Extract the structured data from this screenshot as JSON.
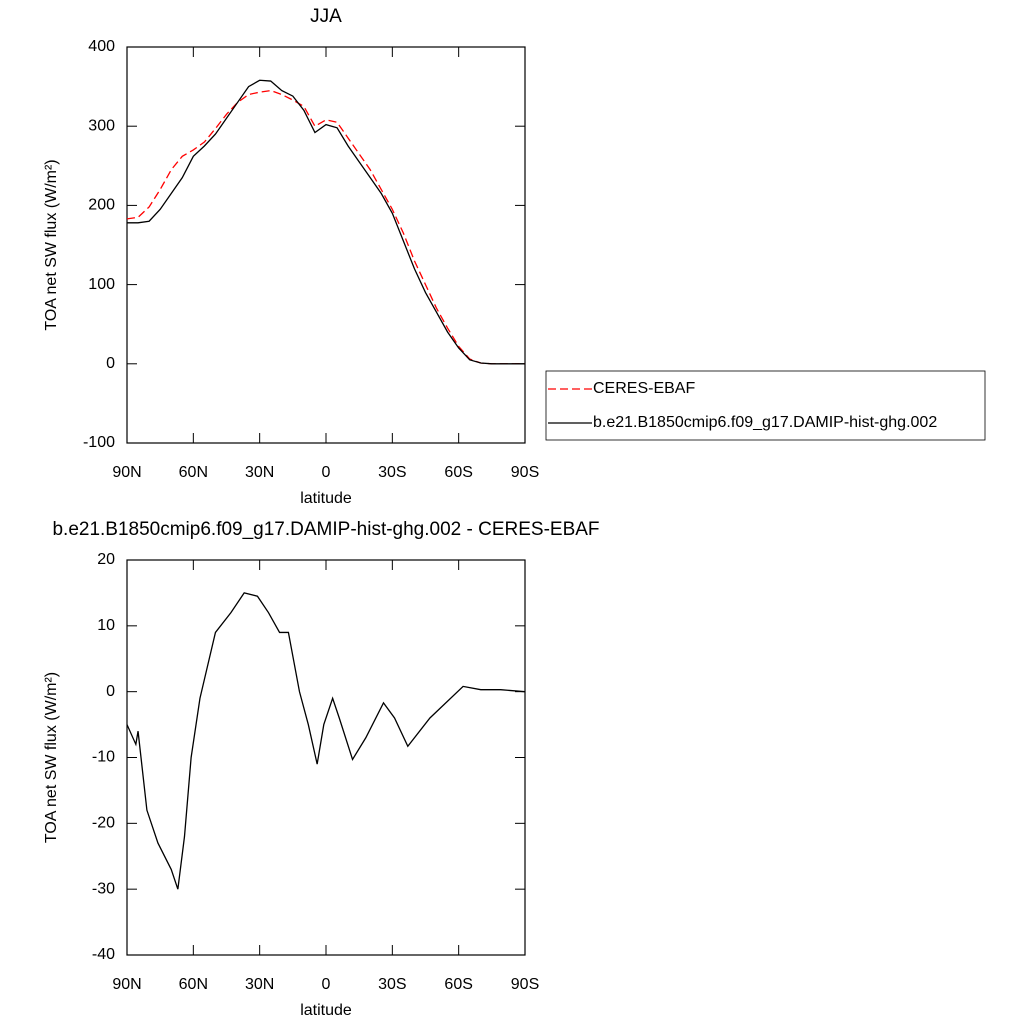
{
  "chart_data": [
    {
      "type": "line",
      "title": "JJA",
      "xlabel": "latitude",
      "ylabel": "TOA net SW flux (W/m²)",
      "x": [
        90,
        85,
        80,
        75,
        70,
        65,
        60,
        55,
        50,
        45,
        40,
        35,
        30,
        25,
        20,
        15,
        10,
        5,
        0,
        -5,
        -10,
        -15,
        -20,
        -25,
        -30,
        -35,
        -40,
        -45,
        -50,
        -55,
        -60,
        -65,
        -70,
        -75,
        -80,
        -85,
        -90
      ],
      "xlim": [
        90,
        -90
      ],
      "xticks": [
        {
          "value": 90,
          "label": "90N"
        },
        {
          "value": 60,
          "label": "60N"
        },
        {
          "value": 30,
          "label": "30N"
        },
        0,
        {
          "value": -30,
          "label": "30S"
        },
        {
          "value": -60,
          "label": "60S"
        },
        {
          "value": -90,
          "label": "90S"
        }
      ],
      "ylim": [
        -100,
        400
      ],
      "yticks": [
        -100,
        0,
        100,
        200,
        300,
        400
      ],
      "legend": "right",
      "series": [
        {
          "name": "CERES-EBAF",
          "color": "#ff0000",
          "dashed": true,
          "values": [
            183,
            185,
            198,
            220,
            245,
            262,
            270,
            280,
            297,
            315,
            330,
            340,
            343,
            345,
            340,
            333,
            325,
            300,
            308,
            305,
            285,
            265,
            245,
            220,
            195,
            165,
            130,
            100,
            70,
            45,
            22,
            6,
            1,
            0,
            0,
            0,
            0
          ]
        },
        {
          "name": "b.e21.B1850cmip6.f09_g17.DAMIP-hist-ghg.002",
          "color": "#000000",
          "dashed": false,
          "values": [
            178,
            178,
            180,
            195,
            215,
            235,
            262,
            275,
            290,
            310,
            330,
            350,
            358,
            357,
            345,
            338,
            320,
            292,
            302,
            298,
            275,
            255,
            235,
            215,
            190,
            155,
            120,
            90,
            65,
            40,
            20,
            5,
            1,
            0,
            0,
            0,
            0
          ]
        }
      ]
    },
    {
      "type": "line",
      "title": "b.e21.B1850cmip6.f09_g17.DAMIP-hist-ghg.002 - CERES-EBAF",
      "xlabel": "latitude",
      "ylabel": "TOA net SW flux (W/m²)",
      "x": [
        90,
        86,
        85,
        81,
        76,
        70,
        67,
        64,
        61,
        57,
        50,
        43,
        37,
        31,
        26,
        21,
        17,
        12,
        8,
        4,
        1,
        -3,
        -6,
        -12,
        -18,
        -26,
        -31,
        -37,
        -47,
        -62,
        -70,
        -79,
        -90
      ],
      "xlim": [
        90,
        -90
      ],
      "xticks": [
        {
          "value": 90,
          "label": "90N"
        },
        {
          "value": 60,
          "label": "60N"
        },
        {
          "value": 30,
          "label": "30N"
        },
        0,
        {
          "value": -30,
          "label": "30S"
        },
        {
          "value": -60,
          "label": "60S"
        },
        {
          "value": -90,
          "label": "90S"
        }
      ],
      "ylim": [
        -40,
        20
      ],
      "yticks": [
        -40,
        -30,
        -20,
        -10,
        0,
        10,
        20
      ],
      "series": [
        {
          "color": "#000000",
          "dashed": false,
          "values": [
            -5,
            -8,
            -6,
            -18,
            -23,
            -27,
            -30,
            -22,
            -10,
            -1,
            9,
            12,
            15,
            14.5,
            12,
            9,
            9,
            0,
            -5,
            -11,
            -5,
            -1,
            -4,
            -10.3,
            -7,
            -1.7,
            -4,
            -8.3,
            -4,
            0.8,
            0.3,
            0.3,
            0
          ]
        }
      ]
    }
  ]
}
